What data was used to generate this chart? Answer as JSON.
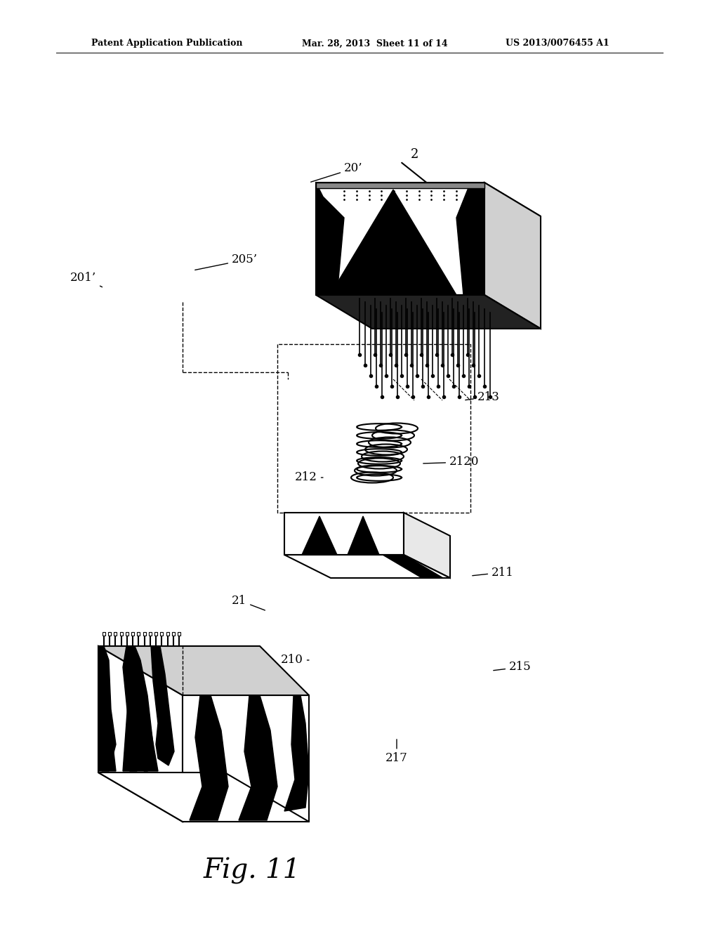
{
  "bg_color": "#ffffff",
  "header_left": "Patent Application Publication",
  "header_mid": "Mar. 28, 2013  Sheet 11 of 14",
  "header_right": "US 2013/0076455 A1",
  "fig_label": "Fig. 11",
  "labels": {
    "20p": "20’",
    "201p": "201’",
    "205p": "205’",
    "2": "2",
    "213": "213",
    "212": "212",
    "2120": "2120",
    "211": "211",
    "21": "21",
    "210": "210",
    "215": "215",
    "217": "217"
  }
}
